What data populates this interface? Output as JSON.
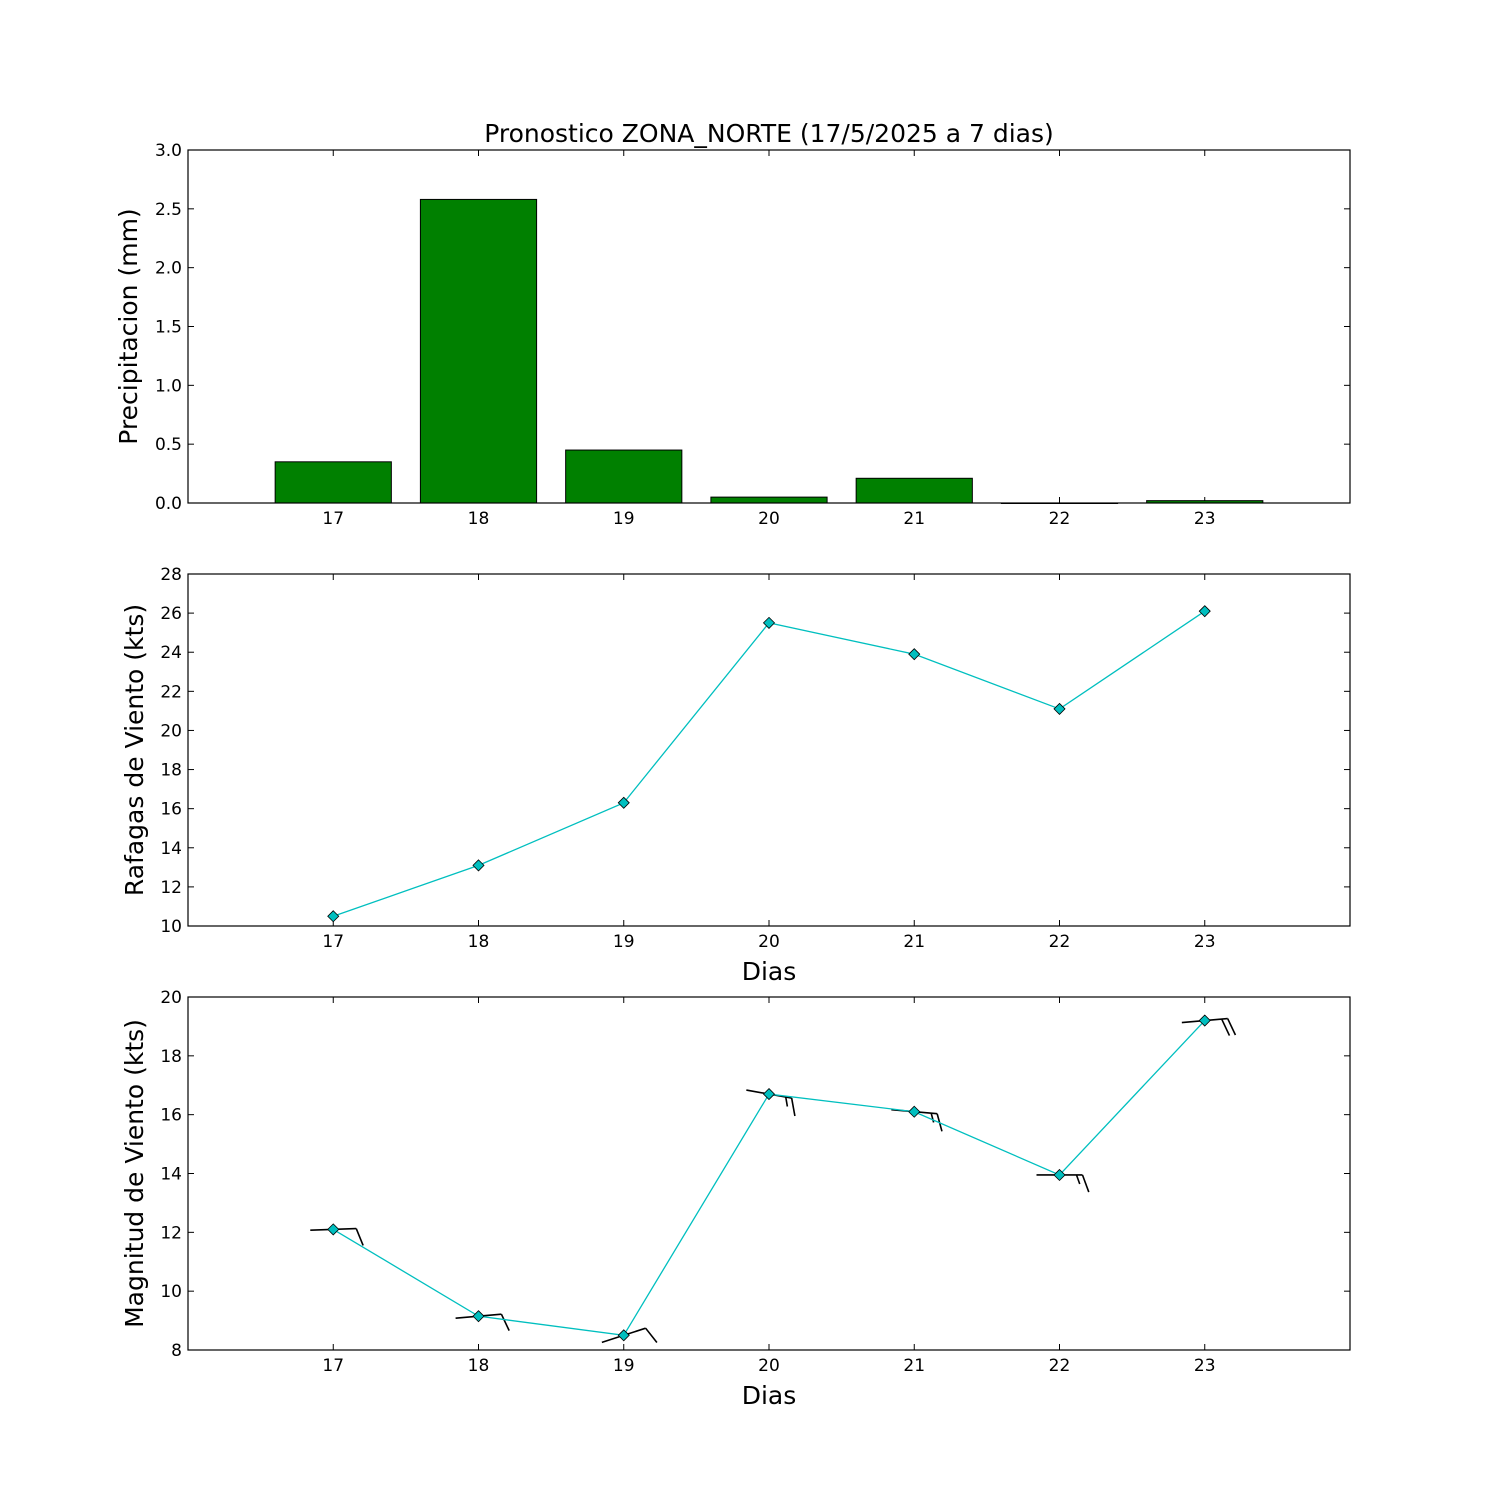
{
  "chart_data": [
    {
      "type": "bar",
      "title": "Pronostico  ZONA_NORTE (17/5/2025 a 7 dias)",
      "xlabel": "",
      "ylabel": "Precipitacion (mm)",
      "categories": [
        "17",
        "18",
        "19",
        "20",
        "21",
        "22",
        "23"
      ],
      "x": [
        17,
        18,
        19,
        20,
        21,
        22,
        23
      ],
      "values": [
        0.35,
        2.58,
        0.45,
        0.05,
        0.21,
        0.0,
        0.02
      ],
      "xlim": [
        16,
        24
      ],
      "ylim": [
        0,
        3.0
      ],
      "yticks": [
        "0.0",
        "0.5",
        "1.0",
        "1.5",
        "2.0",
        "2.5",
        "3.0"
      ],
      "bar_color": "#008000",
      "grid": false
    },
    {
      "type": "line",
      "title": "",
      "xlabel": "Dias",
      "ylabel": "Rafagas de Viento (kts)",
      "x": [
        17,
        18,
        19,
        20,
        21,
        22,
        23
      ],
      "xticks": [
        "17",
        "18",
        "19",
        "20",
        "21",
        "22",
        "23"
      ],
      "values": [
        10.5,
        13.1,
        16.3,
        25.5,
        23.9,
        21.1,
        26.1
      ],
      "xlim": [
        16,
        24
      ],
      "ylim": [
        10,
        28
      ],
      "yticks": [
        "10",
        "12",
        "14",
        "16",
        "18",
        "20",
        "22",
        "24",
        "26",
        "28"
      ],
      "line_color": "#00BFBF",
      "marker": "diamond",
      "grid": false
    },
    {
      "type": "line",
      "title": "",
      "xlabel": "Dias",
      "ylabel": "Magnitud de Viento (kts)",
      "x": [
        17,
        18,
        19,
        20,
        21,
        22,
        23
      ],
      "xticks": [
        "17",
        "18",
        "19",
        "20",
        "21",
        "22",
        "23"
      ],
      "values": [
        12.1,
        9.15,
        8.5,
        16.7,
        16.1,
        13.95,
        19.2
      ],
      "wind_barbs": {
        "direction_deg": [
          268,
          265,
          252,
          280,
          275,
          270,
          265
        ],
        "speed_kts": [
          12.1,
          9.15,
          8.5,
          16.7,
          16.1,
          13.95,
          19.2
        ]
      },
      "xlim": [
        16,
        24
      ],
      "ylim": [
        8,
        20
      ],
      "yticks": [
        "8",
        "10",
        "12",
        "14",
        "16",
        "18",
        "20"
      ],
      "line_color": "#00BFBF",
      "marker": "diamond",
      "grid": false
    }
  ]
}
